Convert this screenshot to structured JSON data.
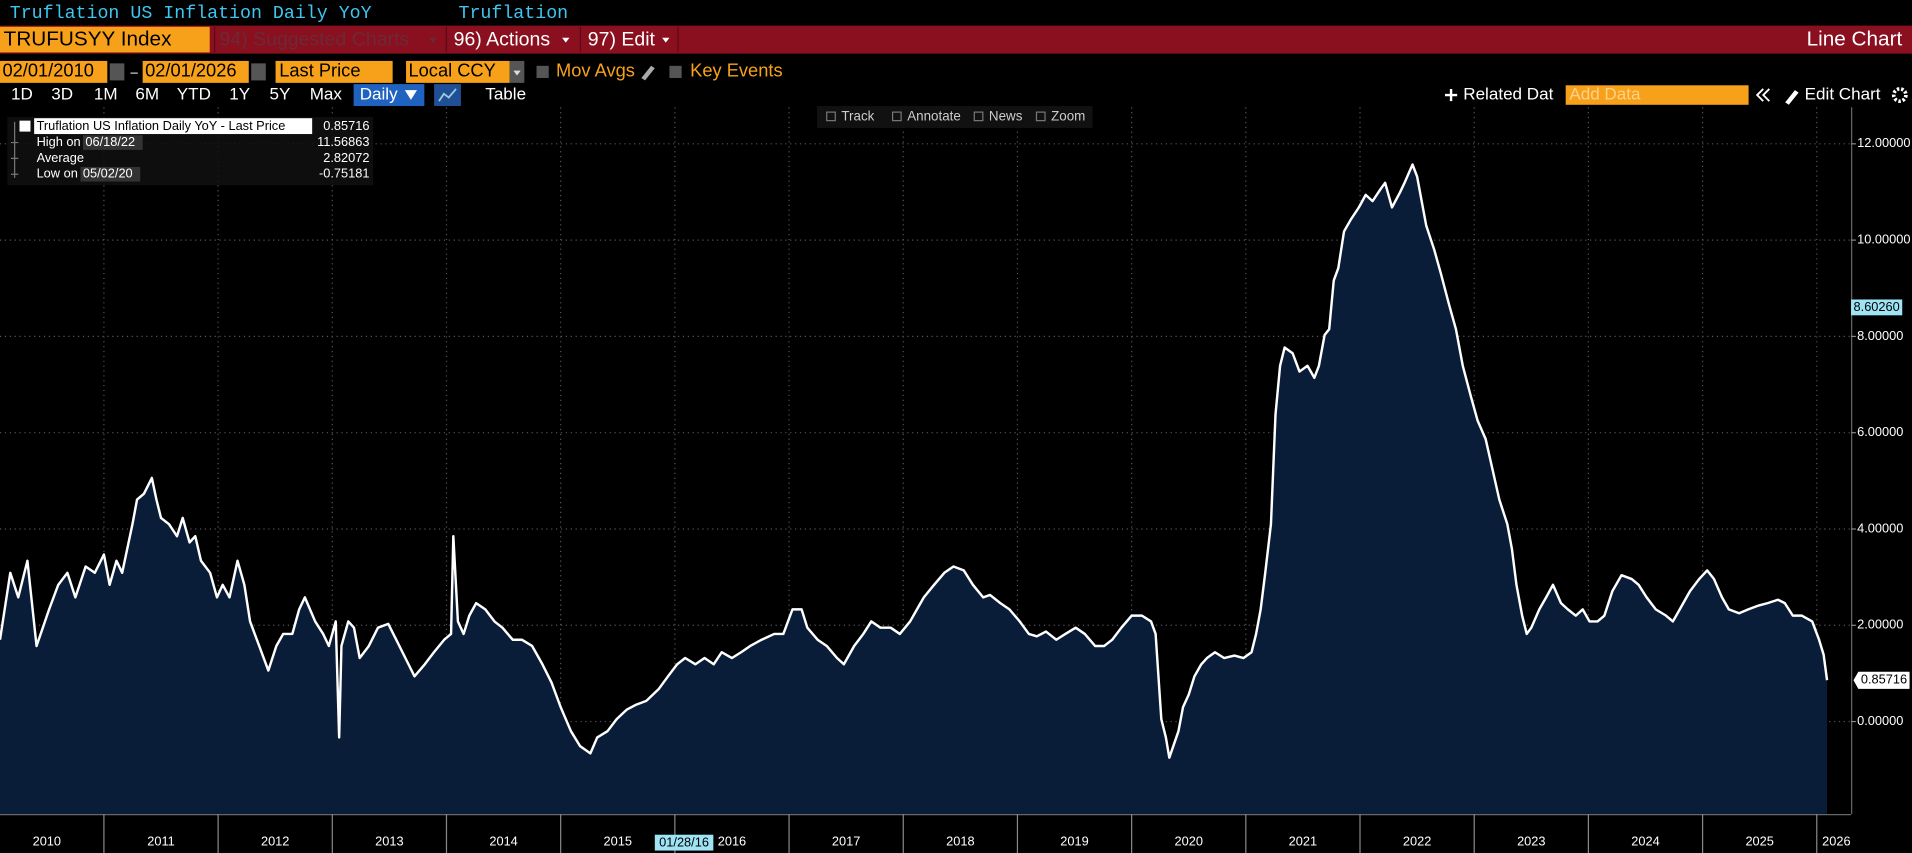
{
  "header": {
    "title": "Truflation US Inflation Daily YoY",
    "source": "Truflation"
  },
  "toolbar": {
    "ticker": "TRUFUSYY Index",
    "suggested": "94) Suggested Charts",
    "actions": "96) Actions",
    "edit": "97) Edit",
    "chart_type": "Line Chart"
  },
  "controls": {
    "start_date": "02/01/2010",
    "end_date": "02/01/2026",
    "field": "Last Price",
    "currency": "Local CCY",
    "mov_avgs": "Mov Avgs",
    "key_events": "Key Events"
  },
  "periods": [
    "1D",
    "3D",
    "1M",
    "6M",
    "YTD",
    "1Y",
    "5Y",
    "Max"
  ],
  "frequency": "Daily",
  "table": "Table",
  "related": "Related Dat",
  "add_data": "Add Data",
  "edit_chart": "Edit Chart",
  "chart_tools": [
    "Track",
    "Annotate",
    "News",
    "Zoom"
  ],
  "legend": {
    "high": {
      "label": "High on",
      "date": "06/18/22",
      "value": 11.56863
    },
    "average": {
      "label": "Average",
      "value": 2.82072
    },
    "low": {
      "label": "Low on",
      "date": "05/02/20",
      "value": -0.75181
    }
  },
  "chart_data": {
    "type": "line",
    "x": [
      2010.09,
      2010.18,
      2010.25,
      2010.33,
      2010.41,
      2010.52,
      2010.6,
      2010.68,
      2010.75,
      2010.84,
      2010.92,
      2011.0,
      2011.05,
      2011.11,
      2011.16,
      2011.25,
      2011.29,
      2011.35,
      2011.42,
      2011.46,
      2011.5,
      2011.57,
      2011.64,
      2011.69,
      2011.75,
      2011.8,
      2011.85,
      2011.93,
      2011.99,
      2012.04,
      2012.1,
      2012.17,
      2012.23,
      2012.28,
      2012.36,
      2012.44,
      2012.51,
      2012.57,
      2012.65,
      2012.71,
      2012.76,
      2012.85,
      2012.92,
      2012.97,
      2013.03,
      2013.06,
      2013.08,
      2013.14,
      2013.19,
      2013.24,
      2013.32,
      2013.4,
      2013.49,
      2013.56,
      2013.64,
      2013.72,
      2013.81,
      2013.89,
      2013.98,
      2014.04,
      2014.06,
      2014.1,
      2014.15,
      2014.2,
      2014.26,
      2014.34,
      2014.42,
      2014.49,
      2014.58,
      2014.66,
      2014.75,
      2014.84,
      2014.92,
      2015.0,
      2015.09,
      2015.17,
      2015.26,
      2015.32,
      2015.41,
      2015.49,
      2015.58,
      2015.66,
      2015.75,
      2015.86,
      2015.94,
      2016.02,
      2016.09,
      2016.18,
      2016.26,
      2016.34,
      2016.41,
      2016.5,
      2016.58,
      2016.66,
      2016.76,
      2016.87,
      2016.95,
      2017.03,
      2017.11,
      2017.16,
      2017.25,
      2017.33,
      2017.42,
      2017.48,
      2017.57,
      2017.65,
      2017.72,
      2017.8,
      2017.89,
      2017.97,
      2018.06,
      2018.12,
      2018.18,
      2018.27,
      2018.36,
      2018.44,
      2018.53,
      2018.61,
      2018.7,
      2018.76,
      2018.85,
      2018.93,
      2019.02,
      2019.1,
      2019.17,
      2019.25,
      2019.34,
      2019.42,
      2019.51,
      2019.59,
      2019.68,
      2019.76,
      2019.83,
      2019.91,
      2020.0,
      2020.09,
      2020.17,
      2020.21,
      2020.26,
      2020.3,
      2020.33,
      2020.41,
      2020.45,
      2020.5,
      2020.55,
      2020.61,
      2020.66,
      2020.73,
      2020.81,
      2020.9,
      2020.98,
      2021.05,
      2021.09,
      2021.13,
      2021.17,
      2021.22,
      2021.26,
      2021.3,
      2021.34,
      2021.41,
      2021.47,
      2021.54,
      2021.6,
      2021.64,
      2021.69,
      2021.73,
      2021.77,
      2021.81,
      2021.86,
      2021.92,
      2021.99,
      2022.05,
      2022.11,
      2022.18,
      2022.22,
      2022.28,
      2022.35,
      2022.39,
      2022.46,
      2022.5,
      2022.54,
      2022.58,
      2022.65,
      2022.71,
      2022.78,
      2022.84,
      2022.9,
      2022.97,
      2023.03,
      2023.1,
      2023.16,
      2023.22,
      2023.29,
      2023.33,
      2023.37,
      2023.42,
      2023.46,
      2023.5,
      2023.57,
      2023.63,
      2023.69,
      2023.76,
      2023.82,
      2023.89,
      2023.95,
      2024.01,
      2024.08,
      2024.14,
      2024.21,
      2024.29,
      2024.38,
      2024.44,
      2024.51,
      2024.59,
      2024.68,
      2024.74,
      2024.8,
      2024.89,
      2024.97,
      2025.04,
      2025.1,
      2025.17,
      2025.23,
      2025.32,
      2025.4,
      2025.49,
      2025.57,
      2025.66,
      2025.72,
      2025.79,
      2025.87,
      2025.96,
      2026.02,
      2026.06,
      2026.09
    ],
    "series": [
      {
        "name": "Truflation US Inflation Daily YoY - Last Price",
        "color": "#ffffff",
        "fill": "#0a1d38",
        "values": [
          1.7,
          3.09,
          2.58,
          3.34,
          1.57,
          2.33,
          2.84,
          3.09,
          2.58,
          3.22,
          3.09,
          3.47,
          2.84,
          3.34,
          3.09,
          4.1,
          4.61,
          4.73,
          5.06,
          4.61,
          4.23,
          4.1,
          3.85,
          4.23,
          3.72,
          3.85,
          3.34,
          3.09,
          2.58,
          2.84,
          2.58,
          3.34,
          2.84,
          2.08,
          1.57,
          1.06,
          1.57,
          1.82,
          1.82,
          2.33,
          2.58,
          2.08,
          1.82,
          1.57,
          2.08,
          -0.33,
          1.57,
          2.08,
          1.95,
          1.32,
          1.57,
          1.95,
          2.03,
          1.7,
          1.32,
          0.94,
          1.19,
          1.44,
          1.7,
          1.82,
          3.85,
          2.08,
          1.82,
          2.2,
          2.46,
          2.33,
          2.08,
          1.95,
          1.7,
          1.7,
          1.57,
          1.19,
          0.81,
          0.3,
          -0.2,
          -0.51,
          -0.66,
          -0.33,
          -0.2,
          0.05,
          0.25,
          0.35,
          0.43,
          0.68,
          0.94,
          1.19,
          1.32,
          1.19,
          1.32,
          1.19,
          1.44,
          1.32,
          1.44,
          1.57,
          1.7,
          1.82,
          1.82,
          2.33,
          2.33,
          1.95,
          1.7,
          1.57,
          1.32,
          1.19,
          1.57,
          1.82,
          2.08,
          1.95,
          1.95,
          1.82,
          2.08,
          2.33,
          2.58,
          2.84,
          3.09,
          3.22,
          3.14,
          2.84,
          2.58,
          2.63,
          2.46,
          2.33,
          2.08,
          1.82,
          1.77,
          1.87,
          1.7,
          1.82,
          1.95,
          1.82,
          1.57,
          1.57,
          1.7,
          1.95,
          2.2,
          2.2,
          2.08,
          1.82,
          0.05,
          -0.33,
          -0.75,
          -0.2,
          0.3,
          0.56,
          0.94,
          1.19,
          1.32,
          1.44,
          1.32,
          1.37,
          1.32,
          1.44,
          1.82,
          2.33,
          3.09,
          4.1,
          6.38,
          7.39,
          7.77,
          7.65,
          7.27,
          7.39,
          7.14,
          7.39,
          8.03,
          8.15,
          9.16,
          9.42,
          10.18,
          10.43,
          10.68,
          10.94,
          10.81,
          11.06,
          11.19,
          10.68,
          10.99,
          11.19,
          11.57,
          11.32,
          10.81,
          10.3,
          9.8,
          9.29,
          8.66,
          8.15,
          7.39,
          6.76,
          6.25,
          5.87,
          5.24,
          4.61,
          4.1,
          3.59,
          2.84,
          2.2,
          1.82,
          1.95,
          2.33,
          2.58,
          2.84,
          2.46,
          2.33,
          2.2,
          2.33,
          2.08,
          2.08,
          2.2,
          2.71,
          3.04,
          2.96,
          2.84,
          2.58,
          2.33,
          2.2,
          2.08,
          2.33,
          2.71,
          2.96,
          3.14,
          2.96,
          2.58,
          2.33,
          2.25,
          2.33,
          2.41,
          2.46,
          2.53,
          2.46,
          2.2,
          2.2,
          2.08,
          1.7,
          1.39,
          0.86
        ]
      }
    ],
    "last_value": 0.85716,
    "cursor": {
      "date": "01/28/16",
      "value": {
        "value": 8.6026,
        "label": "8.60260"
      }
    },
    "xlim": [
      2010.09,
      2026.3
    ],
    "xticks": [
      2010,
      2011,
      2012,
      2013,
      2014,
      2015,
      2016,
      2017,
      2018,
      2019,
      2020,
      2021,
      2022,
      2023,
      2024,
      2025,
      2026
    ],
    "ylim": [
      -1.92,
      12.76
    ],
    "yticks": [
      {
        "value": 0,
        "label": "0.00000"
      },
      {
        "value": 2,
        "label": "2.00000"
      },
      {
        "value": 4,
        "label": "4.00000"
      },
      {
        "value": 6,
        "label": "6.00000"
      },
      {
        "value": 8,
        "label": "8.00000"
      },
      {
        "value": 10,
        "label": "10.00000"
      },
      {
        "value": 12,
        "label": "12.00000"
      }
    ],
    "grid": true
  }
}
